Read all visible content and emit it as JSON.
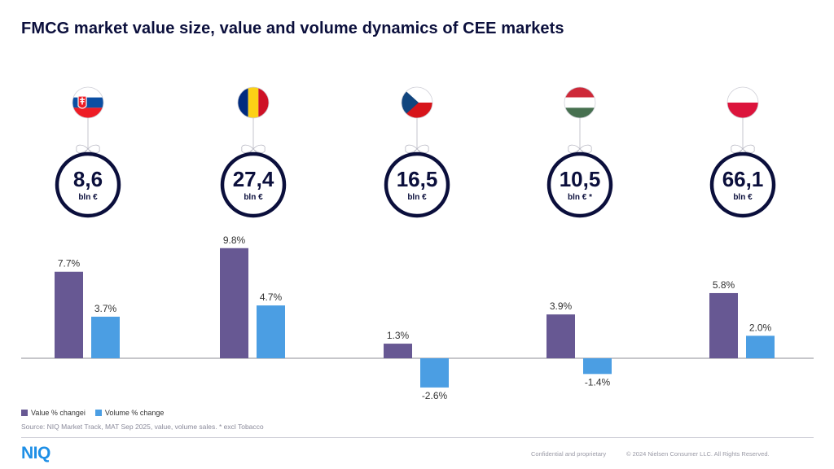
{
  "title": "FMCG market value size, value and volume dynamics of CEE markets",
  "colors": {
    "value_bar": "#675893",
    "volume_bar": "#4b9ee3",
    "circle_border": "#0b0f3c",
    "text": "#0b0f3c"
  },
  "markets": [
    {
      "flag": "slovakia-flag",
      "size": "8,6",
      "unit": "bln €"
    },
    {
      "flag": "romania-flag",
      "size": "27,4",
      "unit": "bln €"
    },
    {
      "flag": "czech-flag",
      "size": "16,5",
      "unit": "bln €"
    },
    {
      "flag": "hungary-flag",
      "size": "10,5",
      "unit": "bln € *"
    },
    {
      "flag": "poland-flag",
      "size": "66,1",
      "unit": "bln €"
    }
  ],
  "chart_data": {
    "type": "bar",
    "categories": [
      "",
      "",
      "",
      "",
      ""
    ],
    "series": [
      {
        "name": "Value % changei",
        "values": [
          7.7,
          9.8,
          1.3,
          3.9,
          5.8
        ],
        "labels": [
          "7.7%",
          "9.8%",
          "1.3%",
          "3.9%",
          "5.8%"
        ]
      },
      {
        "name": "Volume % change",
        "values": [
          3.7,
          4.7,
          -2.6,
          -1.4,
          2.0
        ],
        "labels": [
          "3.7%",
          "4.7%",
          "-2.6%",
          "-1.4%",
          "2.0%"
        ]
      }
    ],
    "ylim": [
      -3,
      10
    ],
    "grid": false,
    "legend": "bottom-left"
  },
  "legend": {
    "value_label": "Value % changei",
    "volume_label": "Volume % change"
  },
  "source": "Source: NIQ Market Track, MAT Sep 2025, value, volume sales. * excl Tobacco",
  "footer": {
    "logo": "NIQ",
    "confidential": "Confidential and proprietary",
    "copyright": "© 2024 Nielsen Consumer LLC. All Rights Reserved."
  }
}
